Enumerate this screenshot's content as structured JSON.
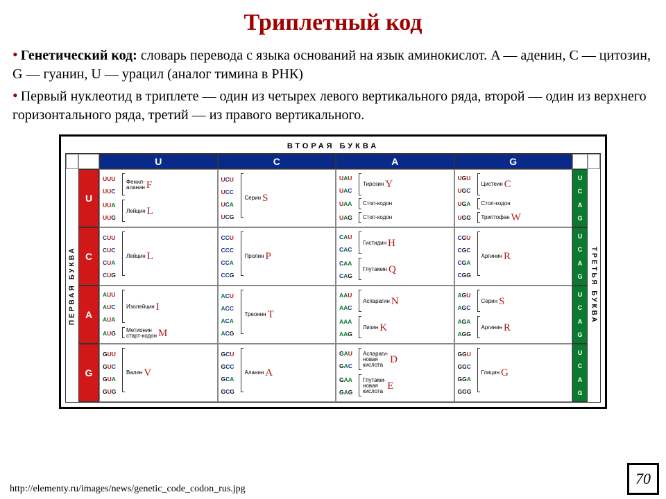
{
  "colors": {
    "title": "#a00000",
    "header_bg": "#0a2a8a",
    "first_col_bg": "#d01818",
    "third_col_bg": "#0a7a30",
    "letter_red": "#b01818",
    "letter_green": "#0a7a30",
    "letter_blue": "#103090",
    "letter_black": "#111111"
  },
  "title": "Триплетный код",
  "intro": {
    "p1_bold": "Генетический код:",
    "p1_rest": " словарь перевода с языка оснований на язык аминокислот. A — аденин, C — цитозин, G — гуанин, U — урацил (аналог тимина в РНК)",
    "p2": "Первый нуклеотид в триплете — один из четырех левого вертикального ряда, второй — один из верхнего горизонтального ряда, третий — из правого вертикального."
  },
  "labels": {
    "top": "ВТОРАЯ  БУКВА",
    "left": "ПЕРВАЯ  БУКВА",
    "right": "ТРЕТЬЯ  БУКВА"
  },
  "bases": [
    "U",
    "C",
    "A",
    "G"
  ],
  "base_colors": {
    "U": "#b01818",
    "C": "#103090",
    "A": "#0a7a30",
    "G": "#111111"
  },
  "third_letters": [
    "U",
    "C",
    "A",
    "G"
  ],
  "cells": {
    "UU": [
      {
        "codons": [
          "UUU",
          "UUC"
        ],
        "name": "Фенил-\nаланин",
        "letter": "F"
      },
      {
        "codons": [
          "UUA",
          "UUG"
        ],
        "name": "Лейцин",
        "letter": "L"
      }
    ],
    "UC": [
      {
        "codons": [
          "UCU",
          "UCC",
          "UCA",
          "UCG"
        ],
        "name": "Серин",
        "letter": "S"
      }
    ],
    "UA": [
      {
        "codons": [
          "UAU",
          "UAC"
        ],
        "name": "Тирозин",
        "letter": "Y"
      },
      {
        "codons": [
          "UAA"
        ],
        "name": "Стоп-кодон",
        "letter": ""
      },
      {
        "codons": [
          "UAG"
        ],
        "name": "Стоп-кодон",
        "letter": ""
      }
    ],
    "UG": [
      {
        "codons": [
          "UGU",
          "UGC"
        ],
        "name": "Цистеин",
        "letter": "C"
      },
      {
        "codons": [
          "UGA"
        ],
        "name": "Стоп-кодон",
        "letter": ""
      },
      {
        "codons": [
          "UGG"
        ],
        "name": "Триптофан",
        "letter": "W"
      }
    ],
    "CU": [
      {
        "codons": [
          "CUU",
          "CUC",
          "CUA",
          "CUG"
        ],
        "name": "Лейцин",
        "letter": "L"
      }
    ],
    "CC": [
      {
        "codons": [
          "CCU",
          "CCC",
          "CCA",
          "CCG"
        ],
        "name": "Пролин",
        "letter": "P"
      }
    ],
    "CA": [
      {
        "codons": [
          "CAU",
          "CAC"
        ],
        "name": "Гистидин",
        "letter": "H"
      },
      {
        "codons": [
          "CAA",
          "CAG"
        ],
        "name": "Глутамин",
        "letter": "Q"
      }
    ],
    "CG": [
      {
        "codons": [
          "CGU",
          "CGC",
          "CGA",
          "CGG"
        ],
        "name": "Аргинин",
        "letter": "R"
      }
    ],
    "AU": [
      {
        "codons": [
          "AUU",
          "AUC",
          "AUA"
        ],
        "name": "Изолейцин",
        "letter": "I"
      },
      {
        "codons": [
          "AUG"
        ],
        "name": "Метионин\nстарт-кодон",
        "letter": "M"
      }
    ],
    "AC": [
      {
        "codons": [
          "ACU",
          "ACC",
          "ACA",
          "ACG"
        ],
        "name": "Треонин",
        "letter": "T"
      }
    ],
    "AA": [
      {
        "codons": [
          "AAU",
          "AAC"
        ],
        "name": "Аспарагин",
        "letter": "N"
      },
      {
        "codons": [
          "AAA",
          "AAG"
        ],
        "name": "Лизин",
        "letter": "K"
      }
    ],
    "AG": [
      {
        "codons": [
          "AGU",
          "AGC"
        ],
        "name": "Серин",
        "letter": "S"
      },
      {
        "codons": [
          "AGA",
          "AGG"
        ],
        "name": "Аргинин",
        "letter": "R"
      }
    ],
    "GU": [
      {
        "codons": [
          "GUU",
          "GUC",
          "GUA",
          "GUG"
        ],
        "name": "Валин",
        "letter": "V"
      }
    ],
    "GC": [
      {
        "codons": [
          "GCU",
          "GCC",
          "GCA",
          "GCG"
        ],
        "name": "Аланин",
        "letter": "A"
      }
    ],
    "GA": [
      {
        "codons": [
          "GAU",
          "GAC"
        ],
        "name": "Аспараги-\nновая\nкислота",
        "letter": "D"
      },
      {
        "codons": [
          "GAA",
          "GAG"
        ],
        "name": "Глутами-\nновая\nкислота",
        "letter": "E"
      }
    ],
    "GG": [
      {
        "codons": [
          "GGU",
          "GGC",
          "GGA",
          "GGG"
        ],
        "name": "Глицин",
        "letter": "G"
      }
    ]
  },
  "footer": "http://elementy.ru/images/news/genetic_code_codon_rus.jpg",
  "page_number": "70"
}
